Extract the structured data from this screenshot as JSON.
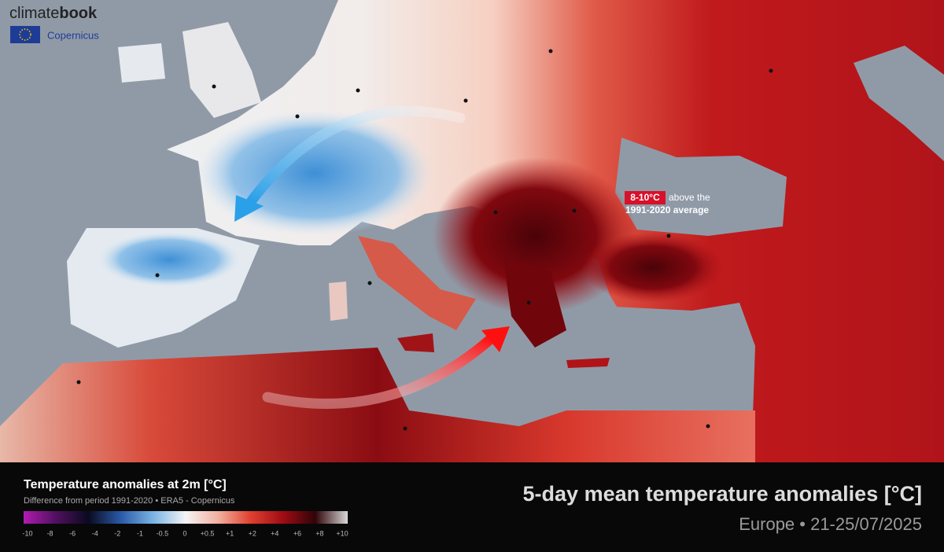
{
  "brand": {
    "name_light": "climate",
    "name_bold": "book",
    "partner": "Copernicus"
  },
  "annotation": {
    "highlight": "8-10°C",
    "line1_rest": "above the",
    "line2": "1991-2020 average"
  },
  "legend": {
    "title": "Temperature anomalies at 2m [°C]",
    "subtitle": "Difference from period 1991-2020 • ERA5 - Copernicus",
    "ticks": [
      "-10",
      "-8",
      "-6",
      "-4",
      "-2",
      "-1",
      "-0.5",
      "0",
      "+0.5",
      "+1",
      "+2",
      "+4",
      "+6",
      "+8",
      "+10"
    ]
  },
  "footer": {
    "title": "5-day mean temperature anomalies [°C]",
    "subtitle": "Europe • 21-25/07/2025"
  }
}
